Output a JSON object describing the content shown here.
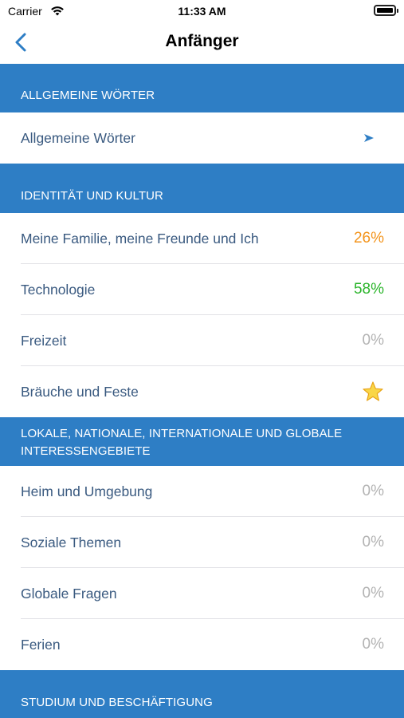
{
  "status_bar": {
    "carrier": "Carrier",
    "time": "11:33 AM"
  },
  "nav": {
    "title": "Anfänger",
    "back_icon": "chevron-left-icon"
  },
  "colors": {
    "accent": "#2e7ec5",
    "section_header_bg": "#2e7ec5",
    "row_text": "#3a5a80",
    "progress_orange": "#f3941c",
    "progress_green": "#2cb52c",
    "progress_gray": "#b3b3b3"
  },
  "sections": [
    {
      "header": "ALLGEMEINE WÖRTER",
      "rows": [
        {
          "label": "Allgemeine Wörter",
          "icon": "play-arrow-icon"
        }
      ]
    },
    {
      "header": "IDENTITÄT UND KULTUR",
      "rows": [
        {
          "label": "Meine Familie, meine Freunde und Ich",
          "value": "26%"
        },
        {
          "label": "Technologie",
          "value": "58%"
        },
        {
          "label": "Freizeit",
          "value": "0%"
        },
        {
          "label": "Bräuche und Feste",
          "icon": "star-icon"
        }
      ]
    },
    {
      "header_line1": "LOKALE, NATIONALE, INTERNATIONALE UND GLOBALE",
      "header_line2": "INTERESSENGEBIETE",
      "rows": [
        {
          "label": "Heim und Umgebung",
          "value": "0%"
        },
        {
          "label": "Soziale Themen",
          "value": "0%"
        },
        {
          "label": "Globale Fragen",
          "value": "0%"
        },
        {
          "label": "Ferien",
          "value": "0%"
        }
      ]
    },
    {
      "header": "STUDIUM UND BESCHÄFTIGUNG",
      "rows": []
    }
  ]
}
